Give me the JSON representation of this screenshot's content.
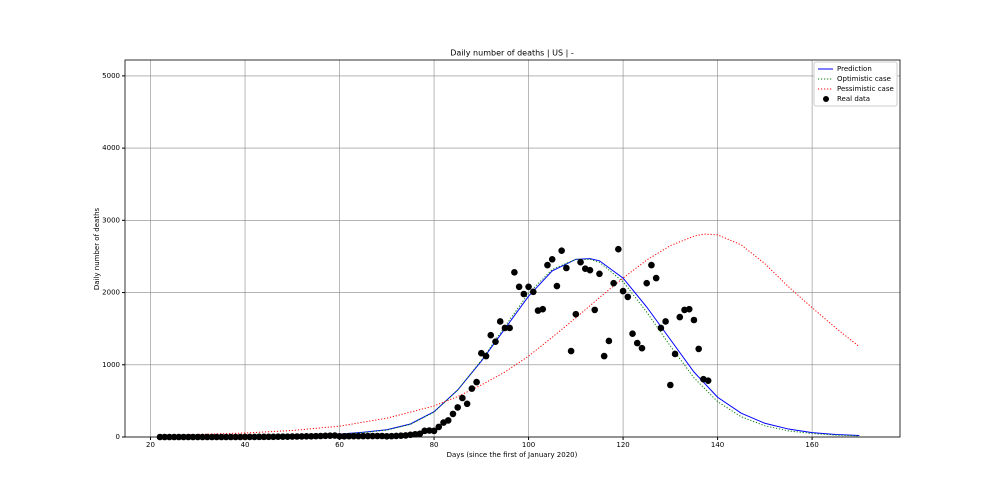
{
  "chart_data": {
    "type": "line",
    "title": "Daily number of deaths | US | -",
    "xlabel": "Days (since the first of January 2020)",
    "ylabel": "Daily number of deaths",
    "xlim": [
      14.6,
      178.6
    ],
    "ylim": [
      0,
      5220
    ],
    "xticks": [
      20,
      40,
      60,
      80,
      100,
      120,
      140,
      160
    ],
    "yticks": [
      0,
      1000,
      2000,
      3000,
      4000,
      5000
    ],
    "grid": true,
    "legend": "upper right",
    "series": [
      {
        "name": "Prediction",
        "type": "line",
        "color": "#0000ff",
        "linestyle": "solid",
        "x": [
          22,
          30,
          40,
          50,
          60,
          65,
          70,
          75,
          80,
          85,
          90,
          95,
          100,
          105,
          110,
          113,
          115,
          120,
          125,
          130,
          135,
          140,
          145,
          150,
          155,
          160,
          165,
          170
        ],
        "values": [
          0,
          2,
          5,
          15,
          40,
          65,
          100,
          180,
          350,
          650,
          1050,
          1500,
          1950,
          2300,
          2460,
          2470,
          2440,
          2200,
          1800,
          1350,
          900,
          550,
          330,
          190,
          110,
          60,
          35,
          20
        ]
      },
      {
        "name": "Optimistic case",
        "type": "line",
        "color": "#008000",
        "linestyle": "dotted",
        "x": [
          22,
          30,
          40,
          50,
          60,
          65,
          70,
          75,
          80,
          85,
          90,
          95,
          100,
          105,
          110,
          113,
          115,
          120,
          125,
          130,
          135,
          140,
          145,
          150,
          155,
          160,
          165,
          170
        ],
        "values": [
          0,
          2,
          5,
          15,
          38,
          62,
          95,
          175,
          345,
          650,
          1060,
          1530,
          1990,
          2320,
          2460,
          2460,
          2420,
          2150,
          1730,
          1260,
          820,
          490,
          280,
          155,
          85,
          48,
          26,
          15
        ]
      },
      {
        "name": "Pessimistic case",
        "type": "line",
        "color": "#ff0000",
        "linestyle": "dotted",
        "x": [
          22,
          30,
          40,
          50,
          60,
          70,
          80,
          85,
          90,
          95,
          100,
          105,
          110,
          115,
          120,
          125,
          130,
          135,
          137,
          140,
          145,
          150,
          155,
          160,
          165,
          170
        ],
        "values": [
          20,
          35,
          55,
          90,
          150,
          260,
          430,
          560,
          720,
          900,
          1120,
          1380,
          1650,
          1930,
          2200,
          2450,
          2650,
          2780,
          2810,
          2800,
          2660,
          2400,
          2080,
          1790,
          1510,
          1250
        ]
      },
      {
        "name": "Real data",
        "type": "scatter",
        "color": "#000000",
        "x": [
          22,
          23,
          24,
          25,
          26,
          27,
          28,
          29,
          30,
          31,
          32,
          33,
          34,
          35,
          36,
          37,
          38,
          39,
          40,
          41,
          42,
          43,
          44,
          45,
          46,
          47,
          48,
          49,
          50,
          51,
          52,
          53,
          54,
          55,
          56,
          57,
          58,
          59,
          60,
          61,
          62,
          63,
          64,
          65,
          66,
          67,
          68,
          69,
          70,
          71,
          72,
          73,
          74,
          75,
          76,
          77,
          78,
          79,
          80,
          81,
          82,
          83,
          84,
          85,
          86,
          87,
          88,
          89,
          90,
          91,
          92,
          93,
          94,
          95,
          96,
          97,
          98,
          99,
          100,
          101,
          102,
          103,
          104,
          105,
          106,
          107,
          108,
          109,
          110,
          111,
          112,
          113,
          114,
          115,
          116,
          117,
          118,
          119,
          120,
          121,
          122,
          123,
          124,
          125,
          126,
          127,
          128,
          129,
          130,
          131,
          132,
          133,
          134,
          135,
          136,
          137,
          138
        ],
        "values": [
          0,
          0,
          0,
          0,
          0,
          0,
          0,
          0,
          0,
          0,
          0,
          0,
          0,
          0,
          0,
          0,
          0,
          0,
          1,
          1,
          1,
          2,
          2,
          3,
          3,
          4,
          5,
          5,
          6,
          7,
          8,
          9,
          10,
          12,
          14,
          16,
          18,
          20,
          10,
          10,
          11,
          11,
          12,
          12,
          13,
          13,
          14,
          14,
          10,
          12,
          15,
          18,
          22,
          30,
          38,
          45,
          85,
          90,
          85,
          140,
          200,
          230,
          320,
          410,
          540,
          460,
          670,
          760,
          1160,
          1120,
          1410,
          1320,
          1600,
          1510,
          1510,
          2280,
          2080,
          1980,
          2080,
          2010,
          1750,
          1770,
          2380,
          2460,
          2090,
          2580,
          2340,
          1190,
          1700,
          2420,
          2330,
          2310,
          1760,
          2260,
          1120,
          1330,
          2130,
          2600,
          2020,
          1940,
          1430,
          1300,
          1230,
          2130,
          2380,
          2200,
          1510,
          1600,
          720,
          1150,
          1660,
          1760,
          1770,
          1620,
          1220,
          800,
          780
        ]
      }
    ]
  }
}
